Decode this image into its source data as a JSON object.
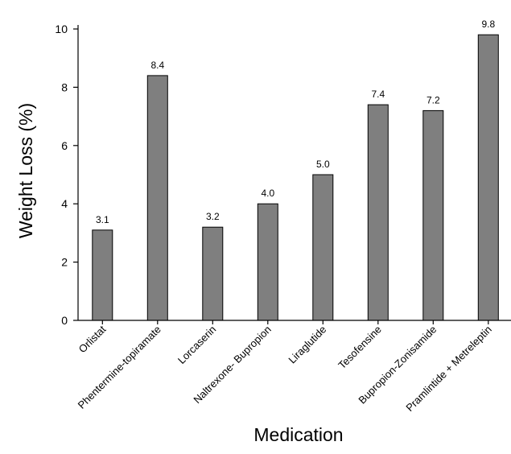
{
  "chart_data": {
    "type": "bar",
    "title": "",
    "xlabel": "Medication",
    "ylabel": "Weight Loss (%)",
    "ylim": [
      0,
      10
    ],
    "yticks": [
      0,
      2,
      4,
      6,
      8,
      10
    ],
    "grid": false,
    "legend": "none",
    "bar_color": "#7f7f7f",
    "categories": [
      "Orlistat",
      "Phentermine-topiramate",
      "Lorcaserin",
      "Naltrexone- Bupropion",
      "Liraglutide",
      "Tesofensine",
      "Bupropion-Zonisamide",
      "Pramlintide + Metreleptin"
    ],
    "values": [
      3.1,
      8.4,
      3.2,
      4.0,
      5.0,
      7.4,
      7.2,
      9.8
    ],
    "data_labels": [
      "3.1",
      "8.4",
      "3.2",
      "4.0",
      "5.0",
      "7.4",
      "7.2",
      "9.8"
    ]
  }
}
